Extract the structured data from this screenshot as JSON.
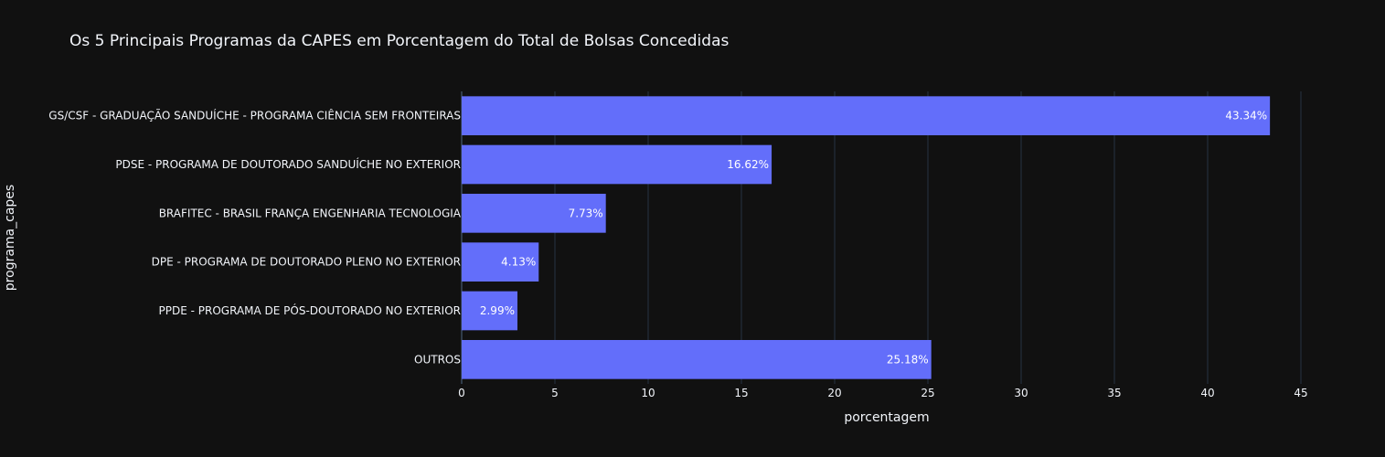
{
  "chart_data": {
    "type": "bar",
    "orientation": "horizontal",
    "title": "Os 5 Principais Programas da CAPES em Porcentagem do Total de Bolsas Concedidas",
    "xlabel": "porcentagem",
    "ylabel": "programa_capes",
    "xlim": [
      0,
      45
    ],
    "xticks": [
      0,
      5,
      10,
      15,
      20,
      25,
      30,
      35,
      40,
      45
    ],
    "grid": true,
    "categories": [
      "GS/CSF - GRADUAÇÃO SANDUÍCHE - PROGRAMA CIÊNCIA SEM FRONTEIRAS",
      "PDSE - PROGRAMA DE DOUTORADO SANDUÍCHE NO EXTERIOR",
      "BRAFITEC - BRASIL FRANÇA ENGENHARIA TECNOLOGIA",
      "DPE - PROGRAMA DE DOUTORADO PLENO NO EXTERIOR",
      "PPDE - PROGRAMA DE PÓS-DOUTORADO NO EXTERIOR",
      "OUTROS"
    ],
    "values": [
      43.34,
      16.62,
      7.73,
      4.13,
      2.99,
      25.18
    ],
    "data_labels": [
      "43.34%",
      "16.62%",
      "7.73%",
      "4.13%",
      "2.99%",
      "25.18%"
    ],
    "colors": {
      "background": "#111111",
      "bar": "#636efa",
      "text": "#f2f5fa",
      "grid": "#283442"
    }
  }
}
